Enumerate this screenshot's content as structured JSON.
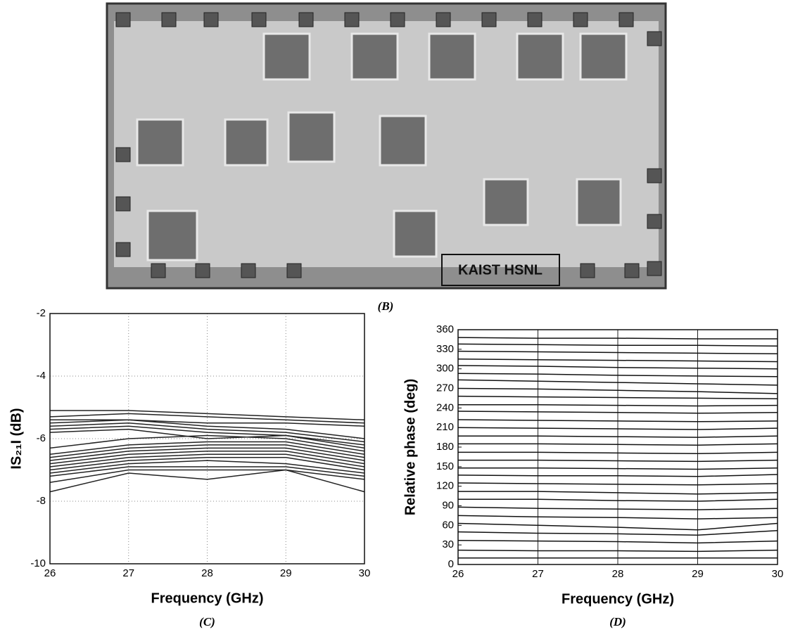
{
  "image": {
    "label": "KAIST HSNL",
    "caption": "(B)"
  },
  "chart_data": [
    {
      "type": "line",
      "caption": "(C)",
      "x_label": "Frequency (GHz)",
      "y_label": "IS₂₁I (dB)",
      "x": [
        26,
        27,
        28,
        29,
        30
      ],
      "xlim": [
        26,
        30
      ],
      "xticks": [
        26,
        27,
        28,
        29,
        30
      ],
      "ylim": [
        -10,
        -2
      ],
      "yticks": [
        -10,
        -8,
        -6,
        -4,
        -2
      ],
      "grid": "both",
      "color": "#222222",
      "series": [
        {
          "values": [
            -5.1,
            -5.1,
            -5.2,
            -5.3,
            -5.4
          ]
        },
        {
          "values": [
            -5.3,
            -5.2,
            -5.3,
            -5.4,
            -5.5
          ]
        },
        {
          "values": [
            -5.4,
            -5.4,
            -5.5,
            -5.5,
            -5.6
          ]
        },
        {
          "values": [
            -5.5,
            -5.4,
            -5.6,
            -5.7,
            -6.0
          ]
        },
        {
          "values": [
            -5.6,
            -5.5,
            -5.7,
            -5.8,
            -6.1
          ]
        },
        {
          "values": [
            -5.7,
            -5.6,
            -5.8,
            -5.9,
            -6.3
          ]
        },
        {
          "values": [
            -5.8,
            -5.7,
            -6.0,
            -5.9,
            -6.2
          ]
        },
        {
          "values": [
            -6.3,
            -6.0,
            -5.9,
            -6.0,
            -6.4
          ]
        },
        {
          "values": [
            -6.5,
            -6.2,
            -6.1,
            -6.1,
            -6.5
          ]
        },
        {
          "values": [
            -6.6,
            -6.3,
            -6.2,
            -6.2,
            -6.6
          ]
        },
        {
          "values": [
            -6.7,
            -6.4,
            -6.3,
            -6.3,
            -6.7
          ]
        },
        {
          "values": [
            -6.8,
            -6.5,
            -6.4,
            -6.4,
            -6.8
          ]
        },
        {
          "values": [
            -6.9,
            -6.6,
            -6.5,
            -6.5,
            -6.9
          ]
        },
        {
          "values": [
            -7.0,
            -6.7,
            -6.6,
            -6.6,
            -7.0
          ]
        },
        {
          "values": [
            -7.1,
            -6.8,
            -6.7,
            -6.8,
            -7.1
          ]
        },
        {
          "values": [
            -7.2,
            -6.9,
            -6.9,
            -6.9,
            -7.2
          ]
        },
        {
          "values": [
            -7.4,
            -7.0,
            -7.0,
            -7.0,
            -7.3
          ]
        },
        {
          "values": [
            -7.7,
            -7.1,
            -7.3,
            -7.0,
            -7.7
          ]
        }
      ]
    },
    {
      "type": "line",
      "caption": "(D)",
      "x_label": "Frequency (GHz)",
      "y_label": "Relative phase (deg)",
      "x": [
        26,
        27,
        28,
        29,
        30
      ],
      "xlim": [
        26,
        30
      ],
      "xticks": [
        26,
        27,
        28,
        29,
        30
      ],
      "ylim": [
        0,
        360
      ],
      "yticks": [
        0,
        30,
        60,
        90,
        120,
        150,
        180,
        210,
        240,
        270,
        300,
        330,
        360
      ],
      "grid": "x",
      "color": "#111111",
      "series": [
        {
          "values": [
            10,
            10,
            10,
            10,
            10
          ]
        },
        {
          "values": [
            22,
            21,
            21,
            20,
            22
          ]
        },
        {
          "values": [
            37,
            36,
            35,
            33,
            36
          ]
        },
        {
          "values": [
            50,
            48,
            47,
            45,
            52
          ]
        },
        {
          "values": [
            63,
            60,
            57,
            53,
            63
          ]
        },
        {
          "values": [
            75,
            73,
            72,
            70,
            72
          ]
        },
        {
          "values": [
            88,
            86,
            85,
            84,
            86
          ]
        },
        {
          "values": [
            100,
            100,
            98,
            97,
            100
          ]
        },
        {
          "values": [
            112,
            112,
            110,
            108,
            110
          ]
        },
        {
          "values": [
            125,
            124,
            123,
            122,
            124
          ]
        },
        {
          "values": [
            137,
            136,
            136,
            135,
            138
          ]
        },
        {
          "values": [
            148,
            148,
            147,
            146,
            148
          ]
        },
        {
          "values": [
            160,
            160,
            159,
            158,
            160
          ]
        },
        {
          "values": [
            172,
            172,
            171,
            170,
            172
          ]
        },
        {
          "values": [
            185,
            185,
            184,
            183,
            185
          ]
        },
        {
          "values": [
            197,
            197,
            196,
            195,
            197
          ]
        },
        {
          "values": [
            210,
            209,
            208,
            207,
            209
          ]
        },
        {
          "values": [
            222,
            221,
            220,
            219,
            220
          ]
        },
        {
          "values": [
            235,
            234,
            233,
            232,
            233
          ]
        },
        {
          "values": [
            245,
            245,
            244,
            243,
            244
          ]
        },
        {
          "values": [
            258,
            257,
            256,
            255,
            254
          ]
        },
        {
          "values": [
            270,
            269,
            267,
            265,
            262
          ]
        },
        {
          "values": [
            283,
            281,
            279,
            277,
            275
          ]
        },
        {
          "values": [
            293,
            292,
            290,
            289,
            288
          ]
        },
        {
          "values": [
            305,
            304,
            302,
            301,
            300
          ]
        },
        {
          "values": [
            315,
            314,
            313,
            312,
            311
          ]
        },
        {
          "values": [
            327,
            326,
            325,
            324,
            323
          ]
        },
        {
          "values": [
            338,
            337,
            336,
            336,
            335
          ]
        },
        {
          "values": [
            348,
            347,
            347,
            346,
            346
          ]
        }
      ]
    }
  ]
}
